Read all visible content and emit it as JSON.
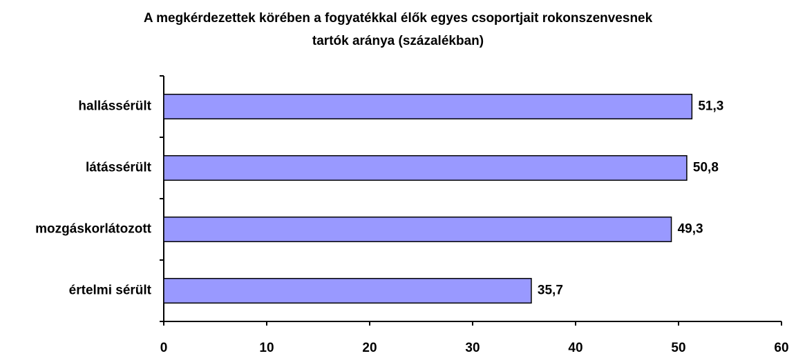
{
  "chart_data": {
    "type": "barh",
    "title": [
      "A megkérdezettek körében a fogyatékkal élők egyes csoportjait rokonszenvesnek",
      "tartók aránya (százalékban)"
    ],
    "categories": [
      "hallássérült",
      "látássérült",
      "mozgáskorlátozott",
      "értelmi sérült"
    ],
    "values": [
      51.3,
      50.8,
      49.3,
      35.7
    ],
    "value_labels": [
      "51,3",
      "50,8",
      "49,3",
      "35,7"
    ],
    "color": "#9999ff",
    "xlim": [
      0,
      60
    ],
    "xticks": [
      0,
      10,
      20,
      30,
      40,
      50,
      60
    ]
  }
}
